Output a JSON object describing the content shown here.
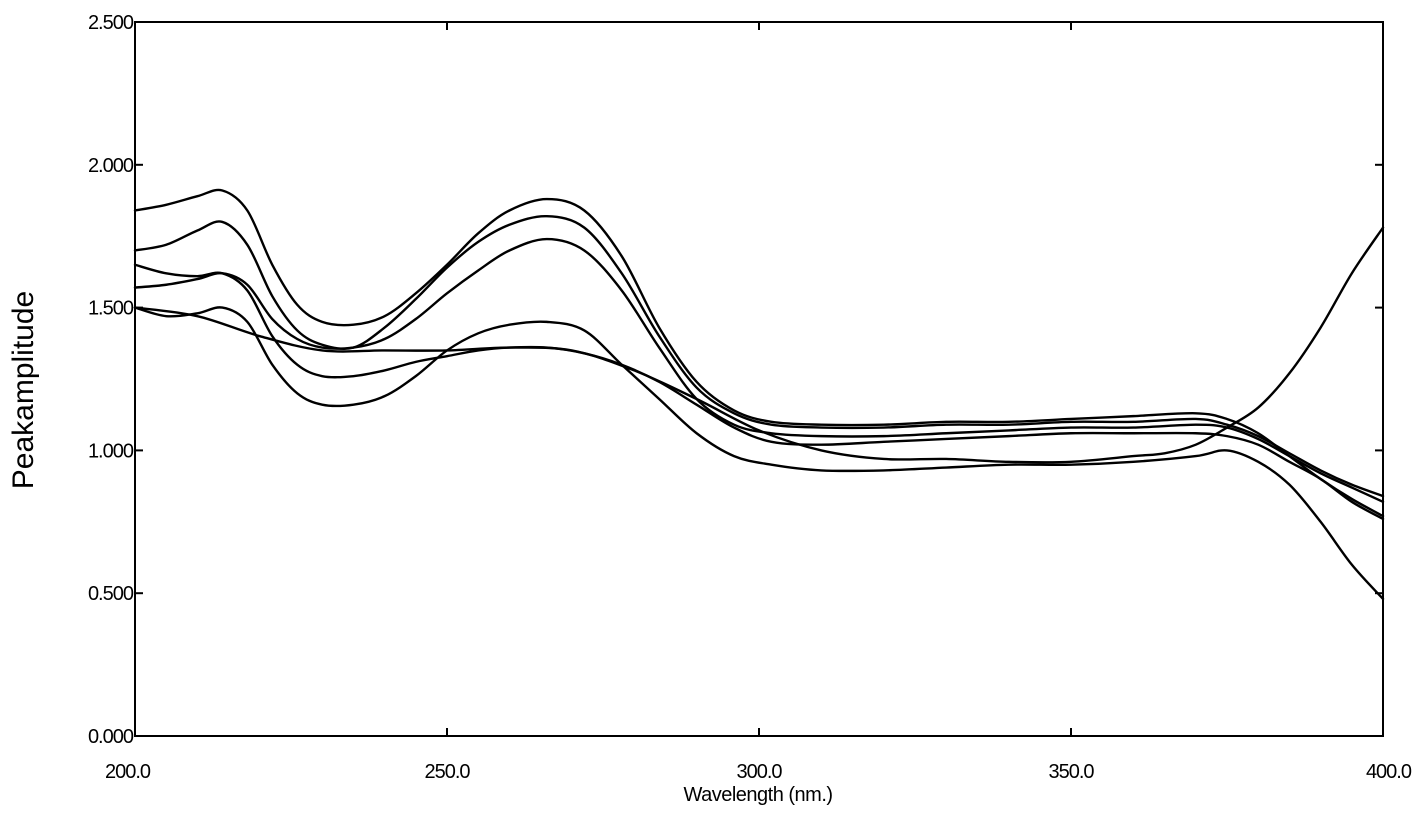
{
  "chart_data": {
    "type": "line",
    "title": "",
    "xlabel": "Wavelength (nm.)",
    "ylabel": "Peakamplitude",
    "xlim": [
      200,
      400
    ],
    "ylim": [
      0,
      2.5
    ],
    "x_ticks": [
      "200.0",
      "250.0",
      "300.0",
      "350.0",
      "400.0"
    ],
    "y_ticks": [
      "0.000",
      "0.500",
      "1.000",
      "1.500",
      "2.000",
      "2.500"
    ],
    "grid": false,
    "legend": "none",
    "line_color": "#000000",
    "series": [
      {
        "x": [
          200,
          205,
          210,
          214,
          218,
          222,
          226,
          230,
          235,
          240,
          245,
          250,
          255,
          260,
          266,
          272,
          278,
          284,
          290,
          296,
          302,
          310,
          320,
          330,
          340,
          350,
          360,
          370,
          375,
          380,
          385,
          390,
          395,
          400
        ],
        "values": [
          1.84,
          1.86,
          1.89,
          1.91,
          1.84,
          1.65,
          1.51,
          1.45,
          1.44,
          1.47,
          1.55,
          1.65,
          1.76,
          1.84,
          1.88,
          1.84,
          1.68,
          1.43,
          1.24,
          1.14,
          1.1,
          1.09,
          1.09,
          1.1,
          1.1,
          1.11,
          1.12,
          1.13,
          1.11,
          1.06,
          0.98,
          0.9,
          0.83,
          0.77
        ]
      },
      {
        "x": [
          200,
          205,
          210,
          214,
          218,
          222,
          226,
          230,
          235,
          240,
          245,
          250,
          255,
          260,
          266,
          272,
          278,
          284,
          290,
          296,
          302,
          310,
          320,
          330,
          340,
          350,
          360,
          370,
          375,
          380,
          385,
          390,
          395,
          400
        ],
        "values": [
          1.7,
          1.72,
          1.77,
          1.8,
          1.72,
          1.54,
          1.42,
          1.37,
          1.36,
          1.43,
          1.53,
          1.64,
          1.73,
          1.79,
          1.82,
          1.78,
          1.62,
          1.4,
          1.22,
          1.13,
          1.09,
          1.08,
          1.08,
          1.09,
          1.09,
          1.1,
          1.1,
          1.11,
          1.09,
          1.05,
          0.99,
          0.93,
          0.88,
          0.84
        ]
      },
      {
        "x": [
          200,
          205,
          210,
          214,
          218,
          222,
          226,
          230,
          235,
          240,
          245,
          250,
          255,
          260,
          266,
          272,
          278,
          284,
          290,
          296,
          302,
          310,
          320,
          330,
          340,
          350,
          360,
          370,
          375,
          380,
          385,
          390,
          395,
          400
        ],
        "values": [
          1.57,
          1.58,
          1.6,
          1.62,
          1.58,
          1.46,
          1.39,
          1.36,
          1.36,
          1.39,
          1.46,
          1.55,
          1.63,
          1.7,
          1.74,
          1.7,
          1.56,
          1.36,
          1.18,
          1.09,
          1.06,
          1.05,
          1.05,
          1.06,
          1.07,
          1.08,
          1.08,
          1.09,
          1.08,
          1.04,
          0.98,
          0.92,
          0.87,
          0.82
        ]
      },
      {
        "x": [
          200,
          205,
          210,
          214,
          218,
          222,
          226,
          230,
          235,
          240,
          245,
          250,
          255,
          260,
          266,
          272,
          278,
          284,
          290,
          296,
          302,
          310,
          320,
          330,
          340,
          350,
          360,
          370,
          375,
          380,
          385,
          390,
          395,
          400
        ],
        "values": [
          1.65,
          1.62,
          1.61,
          1.62,
          1.56,
          1.4,
          1.3,
          1.26,
          1.26,
          1.28,
          1.31,
          1.33,
          1.35,
          1.36,
          1.36,
          1.34,
          1.3,
          1.24,
          1.16,
          1.08,
          1.03,
          1.02,
          1.03,
          1.04,
          1.05,
          1.06,
          1.06,
          1.06,
          1.05,
          1.02,
          0.96,
          0.9,
          0.82,
          0.76
        ]
      },
      {
        "x": [
          200,
          205,
          210,
          214,
          218,
          222,
          226,
          230,
          235,
          240,
          245,
          250,
          255,
          260,
          266,
          272,
          278,
          284,
          290,
          296,
          302,
          310,
          320,
          330,
          340,
          350,
          360,
          370,
          375,
          380,
          385,
          390,
          395,
          400
        ],
        "values": [
          1.5,
          1.47,
          1.48,
          1.5,
          1.45,
          1.3,
          1.2,
          1.16,
          1.16,
          1.19,
          1.26,
          1.35,
          1.41,
          1.44,
          1.45,
          1.42,
          1.3,
          1.18,
          1.06,
          0.98,
          0.95,
          0.93,
          0.93,
          0.94,
          0.95,
          0.95,
          0.96,
          0.98,
          1.0,
          0.96,
          0.88,
          0.75,
          0.6,
          0.48
        ]
      },
      {
        "x": [
          200,
          210,
          220,
          230,
          240,
          250,
          260,
          270,
          280,
          290,
          300,
          310,
          320,
          330,
          340,
          350,
          360,
          365,
          370,
          375,
          380,
          385,
          390,
          395,
          400
        ],
        "values": [
          1.5,
          1.47,
          1.4,
          1.35,
          1.35,
          1.35,
          1.36,
          1.35,
          1.28,
          1.18,
          1.07,
          1.0,
          0.97,
          0.97,
          0.96,
          0.96,
          0.98,
          0.99,
          1.02,
          1.08,
          1.15,
          1.27,
          1.43,
          1.62,
          1.78
        ]
      }
    ]
  }
}
